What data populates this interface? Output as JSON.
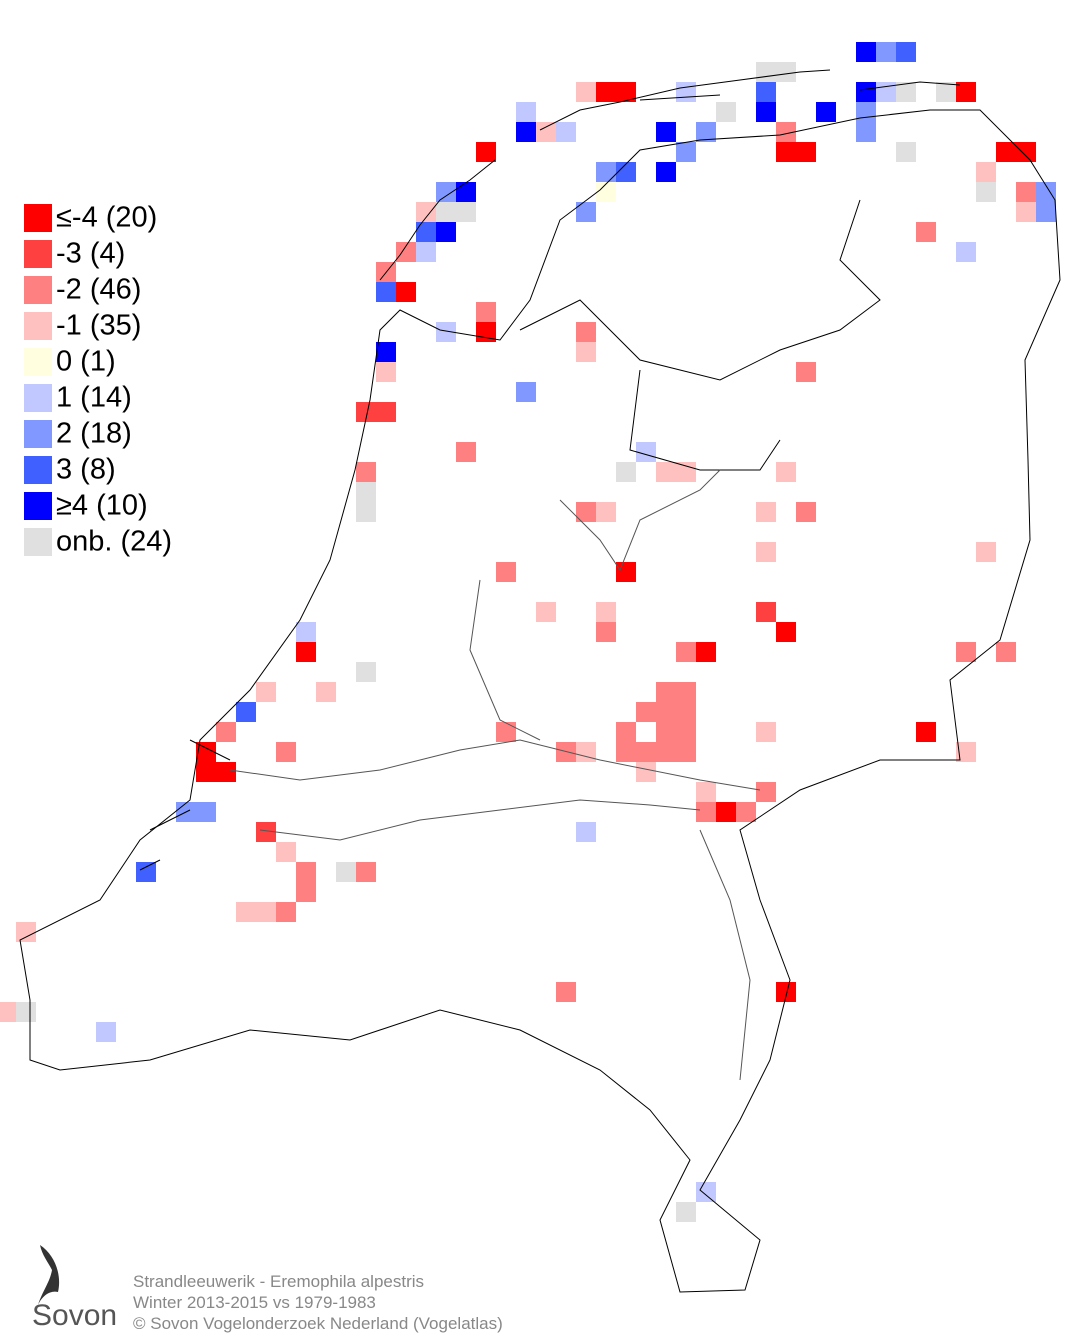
{
  "legend": {
    "items": [
      {
        "label": "≤-4 (20)",
        "color": "#ff0000"
      },
      {
        "label": "-3 (4)",
        "color": "#ff4040"
      },
      {
        "label": "-2 (46)",
        "color": "#ff8080"
      },
      {
        "label": "-1 (35)",
        "color": "#ffc0c0"
      },
      {
        "label": " 0 (1)",
        "color": "#ffffe0"
      },
      {
        "label": " 1 (14)",
        "color": "#c0c8ff"
      },
      {
        "label": " 2 (18)",
        "color": "#8098ff"
      },
      {
        "label": " 3 (8)",
        "color": "#4060ff"
      },
      {
        "label": "≥4 (10)",
        "color": "#0000ff"
      },
      {
        "label": "onb. (24)",
        "color": "#e0e0e0"
      }
    ]
  },
  "footer": {
    "lines": [
      "Strandleeuwerik - Eremophila alpestris",
      "Winter 2013-2015 vs 1979-1983",
      "© Sovon Vogelonderzoek Nederland (Vogelatlas)"
    ]
  },
  "logo": {
    "text": "Sovon"
  }
}
